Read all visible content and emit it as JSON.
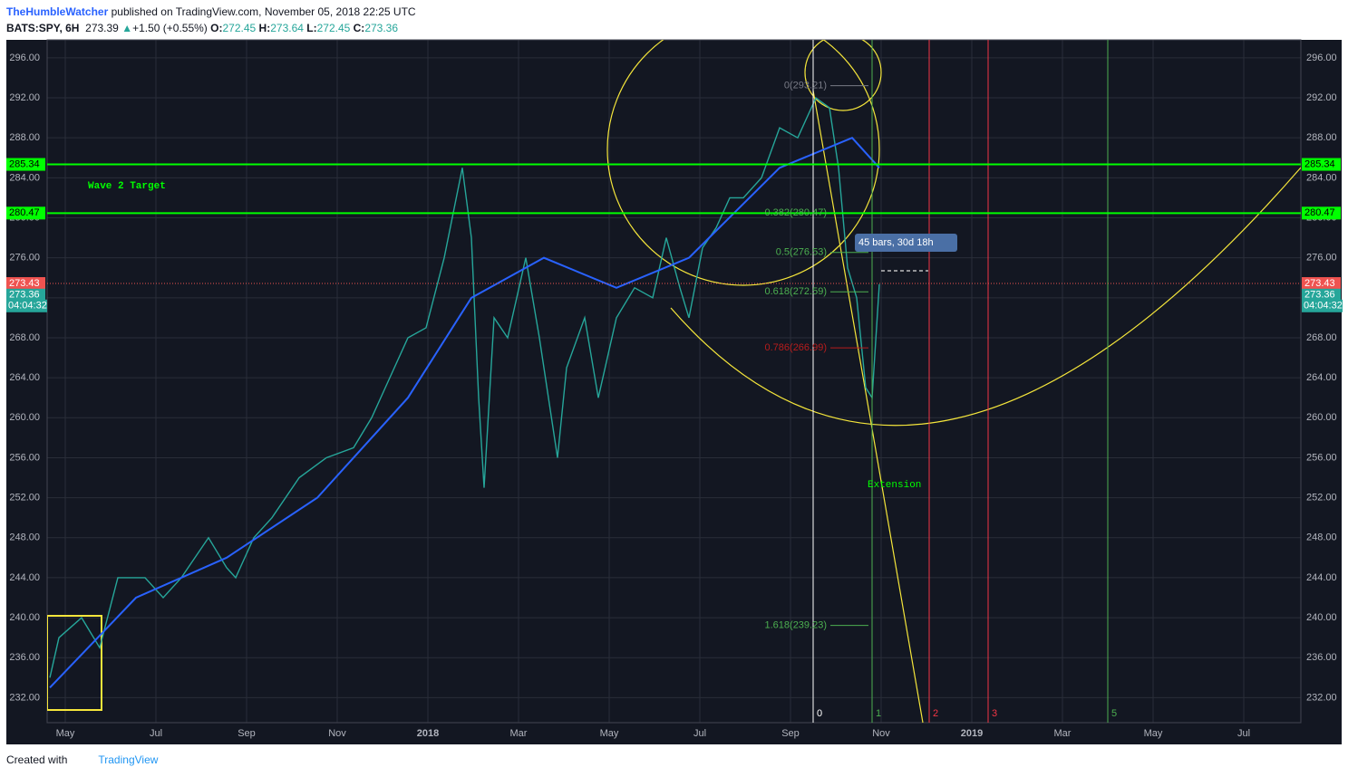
{
  "header": {
    "author": "TheHumbleWatcher",
    "published": "published on TradingView.com, November 05, 2018 22:25 UTC",
    "symbol": "BATS:SPY, 6H",
    "last": "273.39",
    "change": "+1.50 (+0.55%)",
    "open_label": "O:",
    "open": "272.45",
    "high_label": "H:",
    "high": "273.64",
    "low_label": "L:",
    "low": "272.45",
    "close_label": "C:",
    "close": "273.36"
  },
  "chart_data": {
    "type": "line",
    "grid": true,
    "xlim": [
      3.6,
      31.26
    ],
    "ylim": [
      229.5,
      297.8
    ],
    "xticks": [
      {
        "value": 4,
        "label": "May"
      },
      {
        "value": 6,
        "label": "Jul"
      },
      {
        "value": 8,
        "label": "Sep"
      },
      {
        "value": 10,
        "label": "Nov"
      },
      {
        "value": 12,
        "label": "2018"
      },
      {
        "value": 14,
        "label": "Mar"
      },
      {
        "value": 16,
        "label": "May"
      },
      {
        "value": 18,
        "label": "Jul"
      },
      {
        "value": 20,
        "label": "Sep"
      },
      {
        "value": 22,
        "label": "Nov"
      },
      {
        "value": 24,
        "label": "2019"
      },
      {
        "value": 26,
        "label": "Mar"
      },
      {
        "value": 28,
        "label": "May"
      },
      {
        "value": 30,
        "label": "Jul"
      }
    ],
    "yticks": [
      {
        "value": 232,
        "label": "232.00"
      },
      {
        "value": 236,
        "label": "236.00"
      },
      {
        "value": 240,
        "label": "240.00"
      },
      {
        "value": 244,
        "label": "244.00"
      },
      {
        "value": 248,
        "label": "248.00"
      },
      {
        "value": 252,
        "label": "252.00"
      },
      {
        "value": 256,
        "label": "256.00"
      },
      {
        "value": 260,
        "label": "260.00"
      },
      {
        "value": 264,
        "label": "264.00"
      },
      {
        "value": 268,
        "label": "268.00"
      },
      {
        "value": 272,
        "label": "272.00"
      },
      {
        "value": 276,
        "label": "276.00"
      },
      {
        "value": 280,
        "label": "280.00"
      },
      {
        "value": 284,
        "label": "284.00"
      },
      {
        "value": 288,
        "label": "288.00"
      },
      {
        "value": 292,
        "label": "292.00"
      },
      {
        "value": 296,
        "label": "296.00"
      }
    ],
    "series": [
      {
        "color": "#26a69a",
        "x": [
          3.66,
          3.86,
          4.36,
          4.76,
          5.16,
          5.76,
          6.16,
          6.56,
          7.16,
          7.56,
          7.76,
          8.16,
          8.56,
          9.16,
          9.76,
          10.36,
          10.76,
          11.16,
          11.56,
          11.96,
          12.36,
          12.76,
          12.96,
          13.12,
          13.24,
          13.46,
          13.76,
          14.16,
          14.46,
          14.66,
          14.86,
          15.06,
          15.46,
          15.76,
          16.16,
          16.56,
          16.96,
          17.26,
          17.56,
          17.76,
          18.06,
          18.36,
          18.66,
          18.96,
          19.36,
          19.76,
          20.16,
          20.56,
          20.86,
          21.06,
          21.26,
          21.46,
          21.66,
          21.8,
          21.96
        ],
        "values": [
          234,
          238,
          240,
          237,
          244,
          244,
          242,
          244,
          248,
          245,
          244,
          248,
          250,
          254,
          256,
          257,
          260,
          264,
          268,
          269,
          276,
          285,
          278,
          262,
          253,
          270,
          268,
          276,
          268,
          262,
          256,
          265,
          270,
          262,
          270,
          273,
          272,
          278,
          273,
          270,
          277,
          279,
          282,
          282,
          284,
          289,
          288,
          292,
          291,
          285,
          275,
          272,
          263,
          262,
          273.36
        ]
      },
      {
        "color": "#2962ff",
        "x": [
          3.66,
          5.56,
          7.56,
          9.56,
          11.56,
          12.96,
          14.56,
          16.16,
          17.76,
          19.76,
          21.36,
          21.96
        ],
        "values": [
          233,
          242,
          246,
          252,
          262,
          272,
          276,
          273,
          276,
          285,
          288,
          285
        ]
      }
    ],
    "hlines": [
      {
        "value": 285.34,
        "label": "285.34",
        "color": "#00ff00"
      },
      {
        "value": 280.47,
        "label": "280.47",
        "color": "#00ff00"
      }
    ],
    "price_tags": [
      {
        "value": 273.43,
        "label": "273.43",
        "color": "#ef5350"
      },
      {
        "value": 273.36,
        "label": "273.36",
        "color": "#26a69a"
      }
    ],
    "countdown": "04:04:32",
    "fib": [
      {
        "value": 293.21,
        "label": "0(293.21)",
        "color": "#787b86"
      },
      {
        "value": 280.47,
        "label": "0.382(280.47)",
        "color": "#4caf50"
      },
      {
        "value": 276.53,
        "label": "0.5(276.53)",
        "color": "#4caf50"
      },
      {
        "value": 272.59,
        "label": "0.618(272.59)",
        "color": "#4caf50"
      },
      {
        "value": 266.99,
        "label": "0.786(266.99)",
        "color": "#b71c1c"
      },
      {
        "value": 239.23,
        "label": "1.618(239.23)",
        "color": "#4caf50"
      }
    ],
    "vlines": [
      {
        "x": 20.5,
        "label": "0",
        "color": "#ffffff"
      },
      {
        "x": 21.8,
        "label": "1",
        "color": "#4caf50"
      },
      {
        "x": 23.06,
        "label": "2",
        "color": "#f23645"
      },
      {
        "x": 24.36,
        "label": "3",
        "color": "#f23645"
      },
      {
        "x": 27.0,
        "label": "5",
        "color": "#4caf50"
      }
    ],
    "wave_label": "Wave 2 Target",
    "extension_label": "Extension",
    "measure_label": "45 bars, 30d 18h"
  },
  "footer": {
    "created": "Created with",
    "brand": "TradingView"
  }
}
